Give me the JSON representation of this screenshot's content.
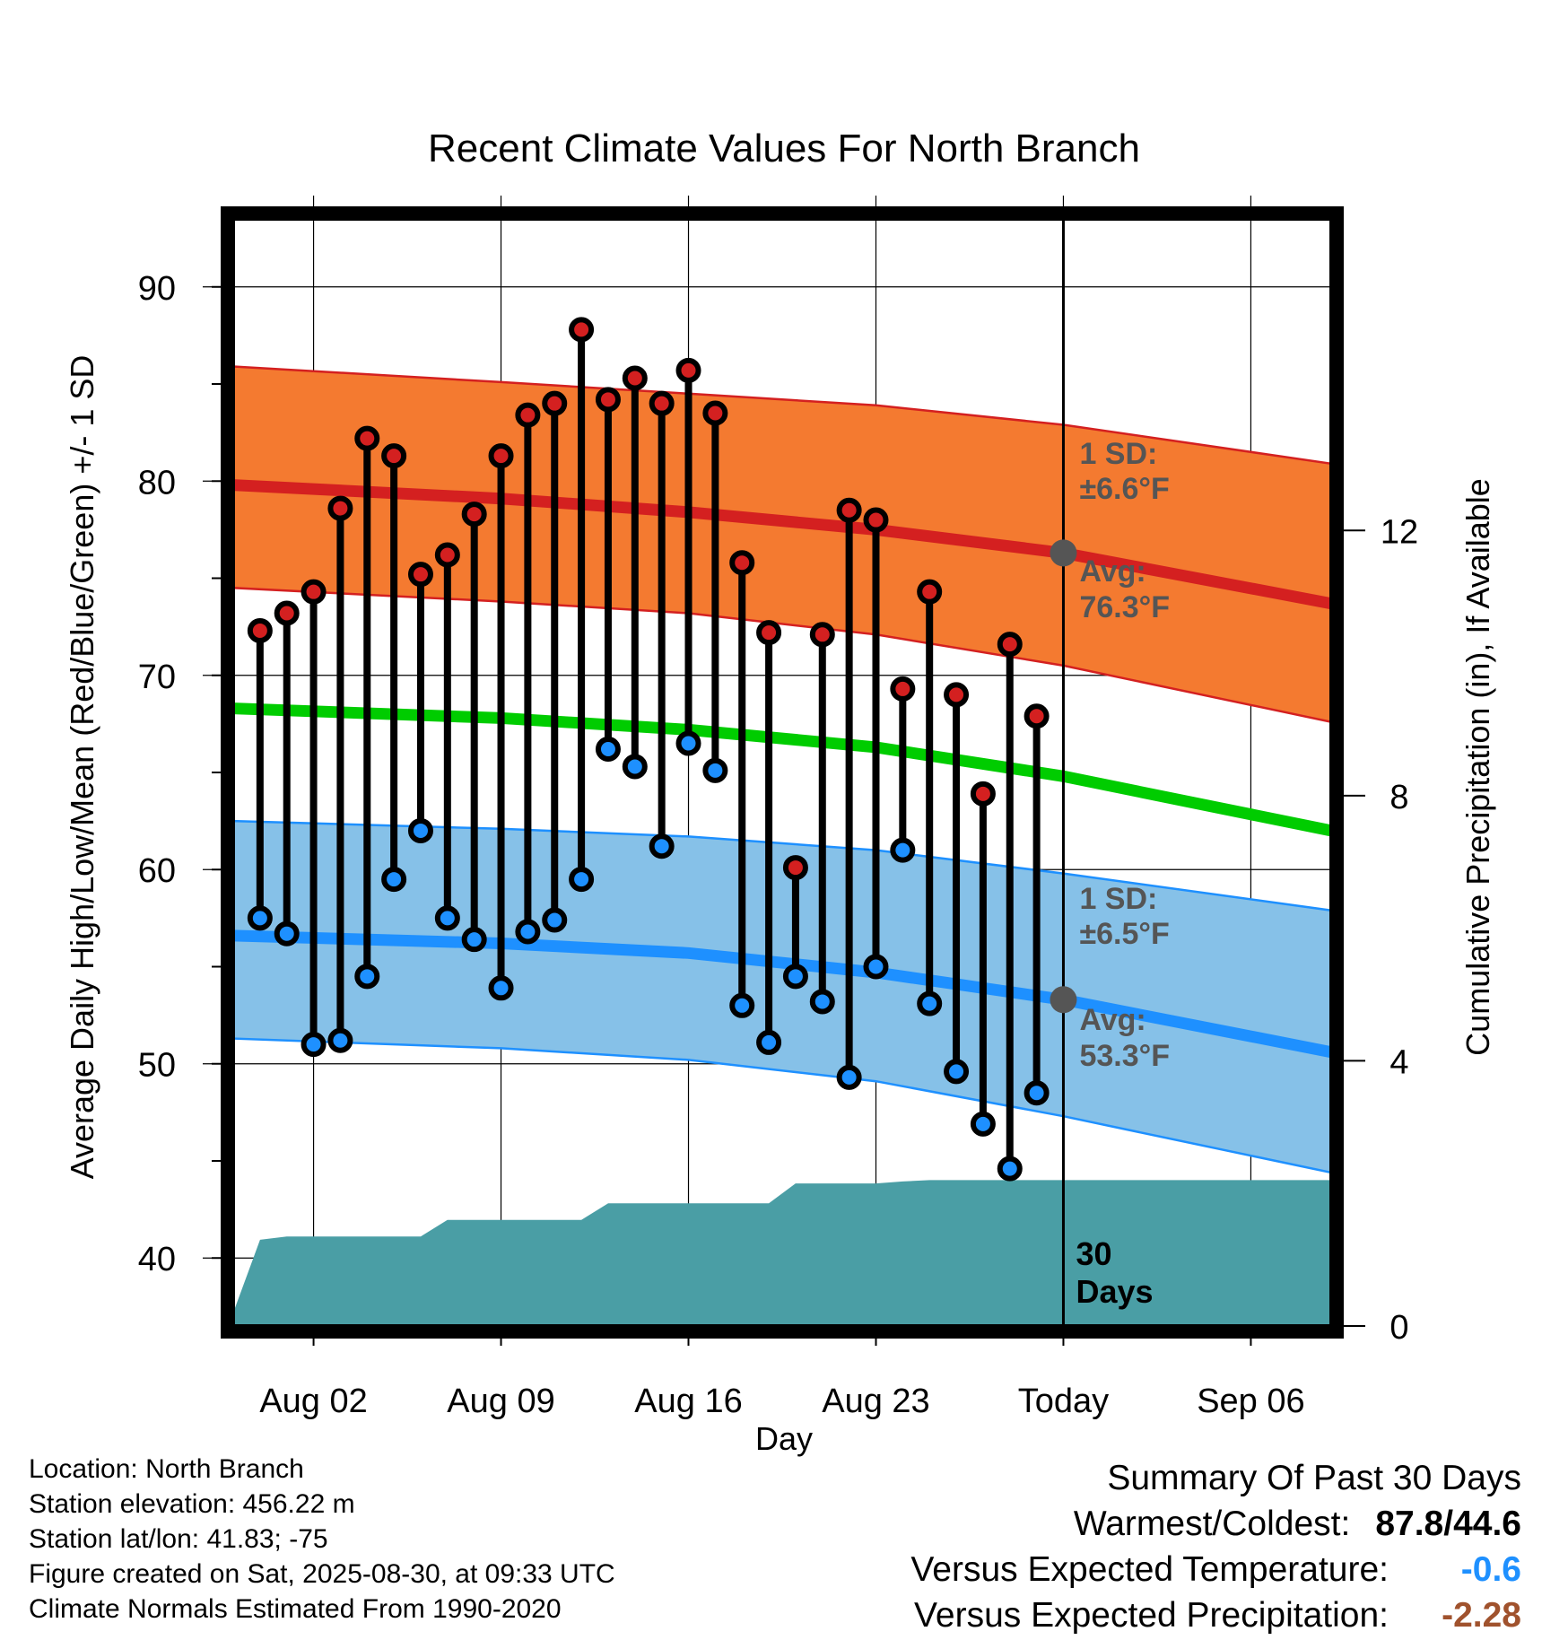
{
  "title": "Recent Climate Values For North Branch",
  "footer": {
    "location": "Location: North Branch",
    "elevation": "Station elevation: 456.22 m",
    "latlon": "Station lat/lon: 41.83; -75",
    "created": "Figure created on Sat, 2025-08-30, at 09:33 UTC",
    "normals": "Climate Normals Estimated From 1990-2020"
  },
  "summary": {
    "heading": "Summary Of Past 30 Days",
    "warm_cold_label": "Warmest/Coldest:",
    "warm_cold_value": "87.8/44.6",
    "temp_label": "Versus Expected Temperature:",
    "temp_value": "-0.6",
    "temp_color": "#1e90ff",
    "precip_label": "Versus Expected Precipitation:",
    "precip_value": "-2.28",
    "precip_color": "#a0522d"
  },
  "annotations": {
    "high_sd_1": "1 SD:",
    "high_sd_2": "±6.6°F",
    "high_avg_1": "Avg:",
    "high_avg_2": "76.3°F",
    "low_sd_1": "1 SD:",
    "low_sd_2": "±6.5°F",
    "low_avg_1": "Avg:",
    "low_avg_2": "53.3°F",
    "days_1": "30",
    "days_2": "Days"
  },
  "colors": {
    "high_band": "#f47a30",
    "high_line": "#d42020",
    "mean_line": "#00cc00",
    "low_band": "#86c1e8",
    "low_line": "#1e90ff",
    "precip_fill": "#4a9ea5",
    "high_dot": "#d42020",
    "low_dot": "#1e90ff"
  },
  "chart_data": {
    "type": "line",
    "xlabel": "Day",
    "ylabel": "Average Daily High/Low/Mean (Red/Blue/Green) +/- 1 SD",
    "y2label": "Cumulative Precipitation (in), If Available",
    "xlim": [
      "2025-07-30",
      "2025-09-09"
    ],
    "ylim": [
      36.5,
      93.5
    ],
    "y2lim": [
      0,
      16.7
    ],
    "x_ticks": [
      {
        "date": "2025-08-02",
        "label": "Aug 02"
      },
      {
        "date": "2025-08-09",
        "label": "Aug 09"
      },
      {
        "date": "2025-08-16",
        "label": "Aug 16"
      },
      {
        "date": "2025-08-23",
        "label": "Aug 23"
      },
      {
        "date": "2025-08-30",
        "label": "Today"
      },
      {
        "date": "2025-09-06",
        "label": "Sep 06"
      }
    ],
    "y_ticks": [
      40,
      50,
      60,
      70,
      80,
      90
    ],
    "y2_ticks": [
      0,
      4,
      8,
      12
    ],
    "grid": true,
    "today": "2025-08-30",
    "normals_x": [
      "2025-07-30",
      "2025-08-09",
      "2025-08-16",
      "2025-08-23",
      "2025-08-30",
      "2025-09-09"
    ],
    "normal_high": [
      79.8,
      79.1,
      78.4,
      77.5,
      76.3,
      73.7
    ],
    "normal_high_sd_upper": [
      85.9,
      85.1,
      84.5,
      83.9,
      82.9,
      80.9
    ],
    "normal_high_sd_lower": [
      74.5,
      73.8,
      73.2,
      72.1,
      70.5,
      67.6
    ],
    "normal_mean": [
      68.3,
      67.8,
      67.2,
      66.3,
      64.8,
      62.0
    ],
    "normal_low": [
      56.6,
      56.2,
      55.7,
      54.7,
      53.3,
      50.6
    ],
    "normal_low_sd_upper": [
      62.5,
      62.1,
      61.7,
      61.0,
      59.8,
      57.9
    ],
    "normal_low_sd_lower": [
      51.3,
      50.8,
      50.2,
      49.1,
      47.3,
      44.4
    ],
    "observed": {
      "dates": [
        "2025-07-31",
        "2025-08-01",
        "2025-08-02",
        "2025-08-03",
        "2025-08-04",
        "2025-08-05",
        "2025-08-06",
        "2025-08-07",
        "2025-08-08",
        "2025-08-09",
        "2025-08-10",
        "2025-08-11",
        "2025-08-12",
        "2025-08-13",
        "2025-08-14",
        "2025-08-15",
        "2025-08-16",
        "2025-08-17",
        "2025-08-18",
        "2025-08-19",
        "2025-08-20",
        "2025-08-21",
        "2025-08-22",
        "2025-08-23",
        "2025-08-24",
        "2025-08-25",
        "2025-08-26",
        "2025-08-27",
        "2025-08-28",
        "2025-08-29"
      ],
      "high": [
        72.3,
        73.2,
        74.3,
        78.6,
        82.2,
        81.3,
        75.2,
        76.2,
        78.3,
        81.3,
        83.4,
        84.0,
        87.8,
        84.2,
        85.3,
        84.0,
        85.7,
        83.5,
        75.8,
        72.2,
        60.1,
        72.1,
        78.5,
        78.0,
        69.3,
        74.3,
        69.0,
        63.9,
        71.6,
        67.9
      ],
      "low": [
        57.5,
        56.7,
        51.0,
        51.2,
        54.5,
        59.5,
        62.0,
        57.5,
        56.4,
        53.9,
        56.8,
        57.4,
        59.5,
        66.2,
        65.3,
        61.2,
        66.5,
        65.1,
        53.0,
        51.1,
        54.5,
        53.2,
        49.3,
        55.0,
        61.0,
        53.1,
        49.6,
        46.9,
        44.6,
        48.5
      ]
    },
    "precip": {
      "dates": [
        "2025-07-30",
        "2025-07-31",
        "2025-08-01",
        "2025-08-02",
        "2025-08-03",
        "2025-08-04",
        "2025-08-05",
        "2025-08-06",
        "2025-08-07",
        "2025-08-08",
        "2025-08-09",
        "2025-08-10",
        "2025-08-11",
        "2025-08-12",
        "2025-08-13",
        "2025-08-14",
        "2025-08-15",
        "2025-08-16",
        "2025-08-17",
        "2025-08-18",
        "2025-08-19",
        "2025-08-20",
        "2025-08-21",
        "2025-08-22",
        "2025-08-23",
        "2025-08-24",
        "2025-08-25",
        "2025-08-26",
        "2025-08-30",
        "2025-09-09"
      ],
      "values": [
        0.2,
        1.3,
        1.35,
        1.35,
        1.35,
        1.35,
        1.35,
        1.35,
        1.6,
        1.6,
        1.6,
        1.6,
        1.6,
        1.6,
        1.85,
        1.85,
        1.85,
        1.85,
        1.85,
        1.85,
        1.85,
        2.15,
        2.15,
        2.15,
        2.15,
        2.18,
        2.2,
        2.2,
        2.2,
        2.2
      ]
    }
  }
}
